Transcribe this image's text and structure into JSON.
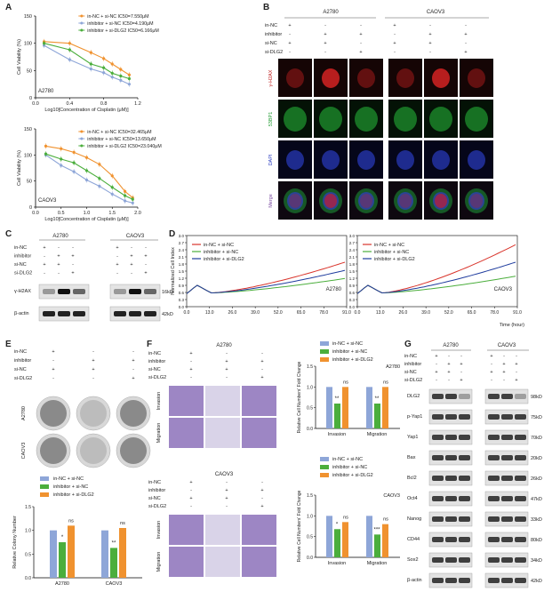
{
  "panel_labels": [
    "A",
    "B",
    "C",
    "D",
    "E",
    "F",
    "G"
  ],
  "colors": {
    "orange": "#F0922F",
    "blue": "#8EA6D8",
    "green": "#4BAE3C",
    "red": "#D9342B",
    "darkblue": "#1F3C9E"
  },
  "chart_data": [
    {
      "id": "A-top",
      "type": "line",
      "cell": "A2780",
      "xlabel": "Log10[Concentration of Cisplatin (μM)]",
      "ylabel": "Cell Viability (%)",
      "xlim": [
        0,
        1.2
      ],
      "ylim": [
        0,
        150
      ],
      "xticks": [
        "0.0",
        "0.4",
        "0.8",
        "1.2"
      ],
      "yticks": [
        "0",
        "50",
        "100",
        "150"
      ],
      "x": [
        0.1,
        0.4,
        0.65,
        0.8,
        0.9,
        1.0,
        1.1
      ],
      "series": [
        {
          "name": "in-NC + si-NC IC50=7.550μM",
          "values": [
            103,
            100,
            83,
            72,
            62,
            52,
            42
          ]
        },
        {
          "name": "inhibitor + si-NC IC50=4.190μM",
          "values": [
            96,
            70,
            53,
            46,
            38,
            32,
            25
          ]
        },
        {
          "name": "inhibitor + si-DLG2 IC50=6.166μM",
          "values": [
            100,
            88,
            62,
            55,
            45,
            40,
            35
          ]
        }
      ]
    },
    {
      "id": "A-bottom",
      "type": "line",
      "cell": "CAOV3",
      "xlabel": "Log10[Concentration of Cisplatin (μM)]",
      "ylabel": "Cell Viability (%)",
      "xlim": [
        0,
        2.0
      ],
      "ylim": [
        0,
        150
      ],
      "xticks": [
        "0.0",
        "0.5",
        "1.0",
        "1.5",
        "2.0"
      ],
      "yticks": [
        "0",
        "50",
        "100",
        "150"
      ],
      "x": [
        0.2,
        0.5,
        0.75,
        1.0,
        1.25,
        1.5,
        1.75,
        1.9
      ],
      "series": [
        {
          "name": "in-NC + si-NC IC50=32.465μM",
          "values": [
            117,
            112,
            105,
            95,
            82,
            60,
            30,
            18
          ]
        },
        {
          "name": "inhibitor + si-NC IC50=13.650μM",
          "values": [
            100,
            80,
            68,
            52,
            40,
            25,
            12,
            8
          ]
        },
        {
          "name": "inhibitor + si-DLG2 IC50=23.040μM",
          "values": [
            102,
            92,
            85,
            70,
            55,
            38,
            22,
            15
          ]
        }
      ]
    },
    {
      "id": "D",
      "type": "line",
      "xlabel": "Time (hour)",
      "ylabel": "Normalized Cell Index",
      "xticks": [
        "0.0",
        "13.0",
        "26.0",
        "39.0",
        "52.0",
        "65.0",
        "78.0",
        "91.0"
      ],
      "yticks": [
        "0.0",
        "0.3",
        "0.6",
        "0.9",
        "1.2",
        "1.5",
        "1.8",
        "2.1",
        "2.4",
        "2.7",
        "3.0"
      ],
      "xlim": [
        0,
        91
      ],
      "ylim": [
        0,
        3.0
      ],
      "legend": [
        "in-NC + si-NC",
        "inhibitor + si-NC",
        "inhibitor + si-DLG2"
      ],
      "cells": [
        "A2780",
        "CAOV3"
      ]
    },
    {
      "id": "E",
      "type": "bar",
      "ylabel": "Relative Colony Number",
      "categories": [
        "A2780",
        "CAOV3"
      ],
      "ylim": [
        0,
        1.5
      ],
      "yticks": [
        "0.0",
        "0.5",
        "1.0",
        "1.5"
      ],
      "series": [
        {
          "name": "in-NC + si-NC",
          "values": [
            1.0,
            1.0
          ]
        },
        {
          "name": "inhibitor + si-NC",
          "values": [
            0.75,
            0.63
          ]
        },
        {
          "name": "inhibitor + si-DLG2",
          "values": [
            1.1,
            1.05
          ]
        }
      ],
      "annotations": [
        "*",
        "ns",
        "**",
        "ns"
      ]
    },
    {
      "id": "F-top",
      "type": "bar",
      "cell": "A2780",
      "ylabel": "Relative Cell Numbers' Fold Change",
      "categories": [
        "Invasion",
        "Migration"
      ],
      "ylim": [
        0,
        1.5
      ],
      "yticks": [
        "0.0",
        "0.5",
        "1.0",
        "1.5"
      ],
      "series": [
        {
          "name": "in-NC + si-NC",
          "values": [
            1.0,
            1.0
          ]
        },
        {
          "name": "inhibitor + si-NC",
          "values": [
            0.6,
            0.6
          ]
        },
        {
          "name": "inhibitor + si-DLG2",
          "values": [
            1.0,
            1.0
          ]
        }
      ],
      "annotations": [
        "**",
        "ns",
        "**",
        "ns"
      ]
    },
    {
      "id": "F-bottom",
      "type": "bar",
      "cell": "CAOV3",
      "ylabel": "Relative Cell Numbers' Fold Change",
      "categories": [
        "Invasion",
        "Migration"
      ],
      "ylim": [
        0,
        1.5
      ],
      "yticks": [
        "0.0",
        "0.5",
        "1.0",
        "1.5"
      ],
      "series": [
        {
          "name": "in-NC + si-NC",
          "values": [
            1.0,
            1.0
          ]
        },
        {
          "name": "inhibitor + si-NC",
          "values": [
            0.68,
            0.55
          ]
        },
        {
          "name": "inhibitor + si-DLG2",
          "values": [
            0.85,
            0.8
          ]
        }
      ],
      "annotations": [
        "*",
        "ns",
        "***",
        "ns"
      ]
    }
  ],
  "panelB": {
    "cells": [
      "A2780",
      "CAOV3"
    ],
    "row_labels": [
      "in-NC",
      "inhibitor",
      "si-NC",
      "si-DLG2"
    ],
    "signs": [
      [
        "+",
        "-",
        "-"
      ],
      [
        "-",
        "+",
        "+"
      ],
      [
        "+",
        "+",
        "-"
      ],
      [
        "-",
        "-",
        "+"
      ]
    ],
    "channels": [
      "γ-H2AX",
      "53BP1",
      "DAPI",
      "Merge"
    ]
  },
  "panelC": {
    "cells": [
      "A2780",
      "CAOV3"
    ],
    "row_labels": [
      "in-NC",
      "inhibitor",
      "si-NC",
      "si-DLG2"
    ],
    "signs": [
      [
        "+",
        "-",
        "-"
      ],
      [
        "-",
        "+",
        "+"
      ],
      [
        "+",
        "+",
        "-"
      ],
      [
        "-",
        "-",
        "+"
      ]
    ],
    "bands": [
      "γ-H2AX",
      "β-actin"
    ],
    "sizes": [
      "16kD",
      "42kD"
    ]
  },
  "panelE": {
    "row_labels": [
      "in-NC",
      "inhibitor",
      "si-NC",
      "si-DLG2"
    ],
    "signs": [
      [
        "+",
        "-",
        "-"
      ],
      [
        "-",
        "+",
        "+"
      ],
      [
        "+",
        "+",
        "-"
      ],
      [
        "-",
        "-",
        "+"
      ]
    ],
    "cells": [
      "A2780",
      "CAOV3"
    ]
  },
  "panelF": {
    "row_labels": [
      "in-NC",
      "inhibitor",
      "si-NC",
      "si-DLG2"
    ],
    "signs": [
      [
        "+",
        "-",
        "-"
      ],
      [
        "-",
        "+",
        "+"
      ],
      [
        "+",
        "+",
        "-"
      ],
      [
        "-",
        "-",
        "+"
      ]
    ],
    "cells": [
      "A2780",
      "CAOV3"
    ],
    "assays": [
      "Invasion",
      "Migration"
    ]
  },
  "panelG": {
    "cells": [
      "A2780",
      "CAOV3"
    ],
    "row_labels": [
      "in-NC",
      "inhibitor",
      "si-NC",
      "si-DLG2"
    ],
    "signs": [
      [
        "+",
        "-",
        "-"
      ],
      [
        "-",
        "+",
        "+"
      ],
      [
        "+",
        "+",
        "-"
      ],
      [
        "-",
        "-",
        "+"
      ]
    ],
    "bands": [
      "DLG2",
      "p-Yap1",
      "Yap1",
      "Bax",
      "Bcl2",
      "Oct4",
      "Nanog",
      "CD44",
      "Sox2",
      "β-actin"
    ],
    "sizes": [
      "98kD",
      "75kD",
      "70kD",
      "20kD",
      "26kD",
      "47kD",
      "33kD",
      "80kD",
      "34kD",
      "42kD"
    ]
  }
}
